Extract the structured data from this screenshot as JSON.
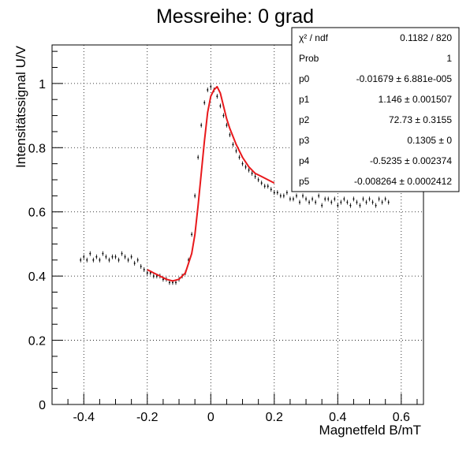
{
  "chart_data": {
    "type": "scatter",
    "title": "Messreihe: 0 grad",
    "xlabel": "Magnetfeld B/mT",
    "ylabel": "Intensitätssignal U/V",
    "xlim": [
      -0.5,
      0.67
    ],
    "ylim": [
      0,
      1.12
    ],
    "xticks": [
      -0.4,
      -0.2,
      0,
      0.2,
      0.4,
      0.6
    ],
    "yticks": [
      0,
      0.2,
      0.4,
      0.6,
      0.8,
      1
    ],
    "grid": true,
    "series": [
      {
        "style": "data points with error bars",
        "color": "#000000",
        "x": [
          -0.41,
          -0.4,
          -0.39,
          -0.38,
          -0.37,
          -0.36,
          -0.35,
          -0.34,
          -0.33,
          -0.32,
          -0.31,
          -0.3,
          -0.29,
          -0.28,
          -0.27,
          -0.26,
          -0.25,
          -0.24,
          -0.23,
          -0.22,
          -0.21,
          -0.2,
          -0.19,
          -0.18,
          -0.17,
          -0.16,
          -0.15,
          -0.14,
          -0.13,
          -0.12,
          -0.11,
          -0.1,
          -0.09,
          -0.08,
          -0.07,
          -0.06,
          -0.05,
          -0.04,
          -0.03,
          -0.02,
          -0.01,
          0.0,
          0.01,
          0.02,
          0.03,
          0.04,
          0.05,
          0.06,
          0.07,
          0.08,
          0.09,
          0.1,
          0.11,
          0.12,
          0.13,
          0.14,
          0.15,
          0.16,
          0.17,
          0.18,
          0.19,
          0.2,
          0.21,
          0.22,
          0.23,
          0.24,
          0.25,
          0.26,
          0.27,
          0.28,
          0.29,
          0.3,
          0.31,
          0.32,
          0.33,
          0.34,
          0.35,
          0.36,
          0.37,
          0.38,
          0.39,
          0.4,
          0.41,
          0.42,
          0.43,
          0.44,
          0.45,
          0.46,
          0.47,
          0.48,
          0.49,
          0.5,
          0.51,
          0.52,
          0.53,
          0.54,
          0.55,
          0.56
        ],
        "y": [
          0.45,
          0.46,
          0.45,
          0.47,
          0.45,
          0.46,
          0.45,
          0.47,
          0.46,
          0.45,
          0.46,
          0.46,
          0.45,
          0.47,
          0.46,
          0.45,
          0.46,
          0.44,
          0.45,
          0.43,
          0.42,
          0.41,
          0.41,
          0.4,
          0.4,
          0.4,
          0.39,
          0.39,
          0.38,
          0.38,
          0.38,
          0.39,
          0.4,
          0.41,
          0.45,
          0.53,
          0.65,
          0.77,
          0.87,
          0.94,
          0.98,
          0.99,
          0.98,
          0.96,
          0.93,
          0.9,
          0.87,
          0.84,
          0.81,
          0.79,
          0.77,
          0.75,
          0.74,
          0.73,
          0.72,
          0.71,
          0.7,
          0.69,
          0.68,
          0.68,
          0.67,
          0.66,
          0.66,
          0.65,
          0.65,
          0.66,
          0.64,
          0.64,
          0.65,
          0.63,
          0.65,
          0.64,
          0.63,
          0.64,
          0.63,
          0.65,
          0.62,
          0.64,
          0.64,
          0.63,
          0.64,
          0.62,
          0.63,
          0.64,
          0.63,
          0.62,
          0.64,
          0.63,
          0.62,
          0.64,
          0.63,
          0.64,
          0.63,
          0.62,
          0.64,
          0.63,
          0.64,
          0.63
        ]
      },
      {
        "style": "fit curve",
        "color": "#e8191c",
        "x": [
          -0.2,
          -0.18,
          -0.16,
          -0.14,
          -0.12,
          -0.1,
          -0.08,
          -0.06,
          -0.05,
          -0.04,
          -0.03,
          -0.02,
          -0.01,
          0.0,
          0.01,
          0.02,
          0.03,
          0.04,
          0.05,
          0.06,
          0.08,
          0.1,
          0.12,
          0.14,
          0.16,
          0.18,
          0.2
        ],
        "y": [
          0.42,
          0.41,
          0.4,
          0.39,
          0.385,
          0.39,
          0.41,
          0.47,
          0.53,
          0.62,
          0.72,
          0.82,
          0.91,
          0.96,
          0.98,
          0.99,
          0.97,
          0.93,
          0.89,
          0.86,
          0.81,
          0.77,
          0.74,
          0.72,
          0.71,
          0.7,
          0.69
        ]
      }
    ],
    "stats_box": {
      "rows": [
        {
          "label": "χ² / ndf",
          "value": "0.1182 / 820"
        },
        {
          "label": "Prob",
          "value": "1"
        },
        {
          "label": "p0",
          "value": "-0.01679 ± 6.881e-005"
        },
        {
          "label": "p1",
          "value": "1.146 ± 0.001507"
        },
        {
          "label": "p2",
          "value": "72.73 ± 0.3155"
        },
        {
          "label": "p3",
          "value": "0.1305 ±      0"
        },
        {
          "label": "p4",
          "value": "-0.5235 ± 0.002374"
        },
        {
          "label": "p5",
          "value": "-0.008264 ± 0.0002412"
        }
      ]
    }
  }
}
